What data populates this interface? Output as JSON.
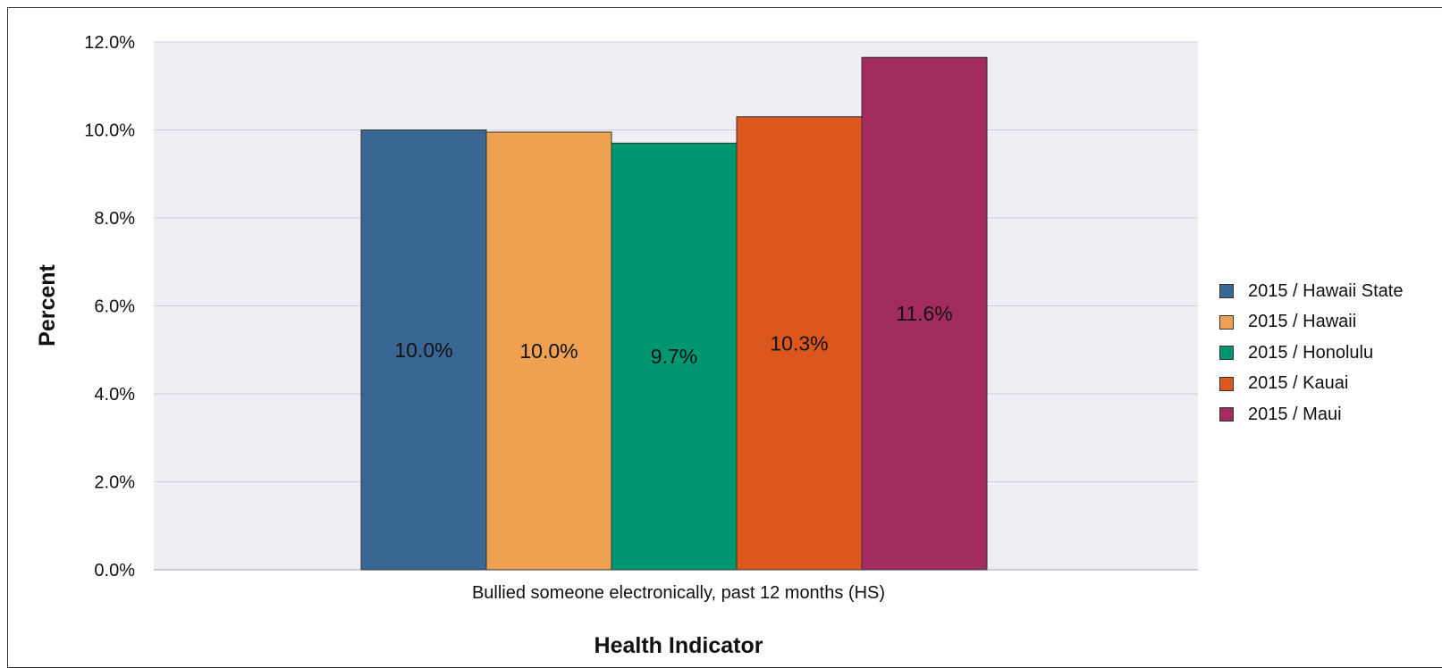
{
  "chart_data": {
    "type": "bar",
    "title": "",
    "xlabel": "Health Indicator",
    "ylabel": "Percent",
    "categories": [
      "Bullied someone electronically, past 12 months (HS)"
    ],
    "ylim": [
      0,
      12
    ],
    "yticks": [
      "0.0%",
      "2.0%",
      "4.0%",
      "6.0%",
      "8.0%",
      "10.0%",
      "12.0%"
    ],
    "grid": true,
    "legend_position": "right",
    "series": [
      {
        "name": "2015 / Hawaii State",
        "values": [
          10.0
        ],
        "label": "10.0%",
        "color": "#3a6694"
      },
      {
        "name": "2015 / Hawaii",
        "values": [
          9.95
        ],
        "label": "10.0%",
        "color": "#eea251"
      },
      {
        "name": "2015 / Honolulu",
        "values": [
          9.7
        ],
        "label": "9.7%",
        "color": "#009670"
      },
      {
        "name": "2015 / Kauai",
        "values": [
          10.3
        ],
        "label": "10.3%",
        "color": "#dc571e"
      },
      {
        "name": "2015 / Maui",
        "values": [
          11.65
        ],
        "label": "11.6%",
        "color": "#a22c5e"
      }
    ]
  }
}
